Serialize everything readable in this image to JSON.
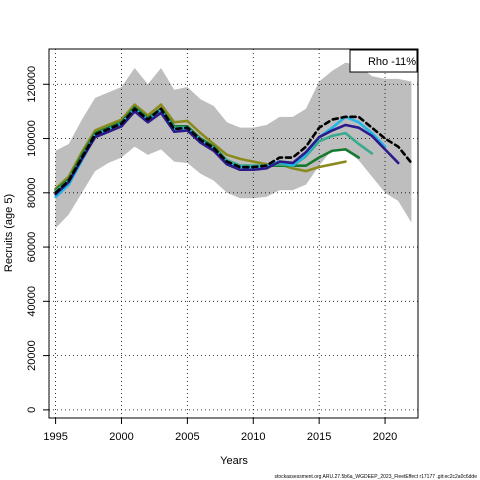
{
  "chart_data": {
    "type": "line",
    "xlabel": "Years",
    "ylabel": "Recruits (age 5)",
    "xlim": [
      1994.5,
      2022.5
    ],
    "ylim": [
      -3000,
      133000
    ],
    "x_ticks": [
      1995,
      2000,
      2005,
      2010,
      2015,
      2020
    ],
    "y_ticks": [
      0,
      20000,
      40000,
      60000,
      80000,
      100000,
      120000
    ],
    "grid": true,
    "legend": {
      "text": "Rho -11%",
      "position": "top-right"
    },
    "caption": "stockassessment.org ARU.27.5b6a_WGDEEP_2023_FleetEffect r17177 .git:ec2c2a0c6dde",
    "confidence_band": {
      "x": [
        1995,
        1996,
        1997,
        1998,
        1999,
        2000,
        2001,
        2002,
        2003,
        2004,
        2005,
        2006,
        2007,
        2008,
        2009,
        2010,
        2011,
        2012,
        2013,
        2014,
        2015,
        2016,
        2017,
        2018,
        2019,
        2020,
        2021,
        2022
      ],
      "lower": [
        67000,
        72000,
        80000,
        88000,
        91000,
        93000,
        97000,
        94000,
        96000,
        91500,
        91000,
        87000,
        84500,
        80000,
        78000,
        78000,
        78500,
        81000,
        81000,
        83000,
        90000,
        96000,
        96000,
        92000,
        86000,
        80000,
        77000,
        69000
      ],
      "upper": [
        95500,
        98000,
        107000,
        115000,
        117000,
        119000,
        126000,
        120000,
        126000,
        118000,
        119000,
        114500,
        112000,
        106000,
        104000,
        104000,
        105000,
        108000,
        108000,
        111000,
        121000,
        125000,
        128000,
        127000,
        123000,
        122000,
        122000,
        121000
      ],
      "color": "#bebebe"
    },
    "series": [
      {
        "color": "#000000",
        "dashed": true,
        "x": [
          1995,
          1996,
          1997,
          1998,
          1999,
          2000,
          2001,
          2002,
          2003,
          2004,
          2005,
          2006,
          2007,
          2008,
          2009,
          2010,
          2011,
          2012,
          2013,
          2014,
          2015,
          2016,
          2017,
          2018,
          2019,
          2020,
          2021,
          2022
        ],
        "values": [
          80000,
          84500,
          93000,
          101500,
          103500,
          105500,
          111000,
          107000,
          111000,
          103500,
          104000,
          99500,
          96500,
          91500,
          89500,
          89500,
          90000,
          93000,
          93000,
          97000,
          104000,
          107000,
          108000,
          108000,
          104000,
          100000,
          97000,
          91000
        ]
      },
      {
        "color": "#2a1a8a",
        "x": [
          1995,
          1996,
          1997,
          1998,
          1999,
          2000,
          2001,
          2002,
          2003,
          2004,
          2005,
          2006,
          2007,
          2008,
          2009,
          2010,
          2011,
          2012,
          2013,
          2014,
          2015,
          2016,
          2017,
          2018,
          2019,
          2020,
          2021
        ],
        "values": [
          79500,
          84000,
          92500,
          100500,
          102500,
          104500,
          110000,
          106000,
          109500,
          102500,
          103000,
          98500,
          95500,
          90500,
          88500,
          88500,
          89000,
          91500,
          91000,
          95000,
          100500,
          103000,
          105000,
          104000,
          101000,
          96000,
          91000
        ]
      },
      {
        "color": "#23b6e6",
        "x": [
          1995,
          1996,
          1997,
          1998,
          1999,
          2000,
          2001,
          2002,
          2003,
          2004,
          2005,
          2006,
          2007,
          2008,
          2009,
          2010,
          2011,
          2012,
          2013,
          2014,
          2015,
          2016,
          2017,
          2018,
          2019,
          2020
        ],
        "values": [
          78500,
          83000,
          92000,
          101000,
          103500,
          105500,
          111000,
          107000,
          110500,
          103500,
          104000,
          99500,
          96000,
          91000,
          89500,
          89500,
          90000,
          91500,
          90000,
          94000,
          100500,
          104000,
          108000,
          106000,
          102000,
          97000
        ]
      },
      {
        "color": "#3aaa8e",
        "x": [
          1995,
          1996,
          1997,
          1998,
          1999,
          2000,
          2001,
          2002,
          2003,
          2004,
          2005,
          2006,
          2007,
          2008,
          2009,
          2010,
          2011,
          2012,
          2013,
          2014,
          2015,
          2016,
          2017,
          2018,
          2019
        ],
        "values": [
          80500,
          84500,
          93000,
          101500,
          103500,
          105500,
          111000,
          107000,
          110500,
          104000,
          104000,
          99500,
          96500,
          92000,
          90000,
          90000,
          90000,
          90500,
          90000,
          93500,
          99000,
          101000,
          102000,
          98000,
          94500
        ]
      },
      {
        "color": "#157a2e",
        "x": [
          1995,
          1996,
          1997,
          1998,
          1999,
          2000,
          2001,
          2002,
          2003,
          2004,
          2005,
          2006,
          2007,
          2008,
          2009,
          2010,
          2011,
          2012,
          2013,
          2014,
          2015,
          2016,
          2017,
          2018
        ],
        "values": [
          81000,
          85000,
          94000,
          102000,
          104000,
          106000,
          111500,
          107500,
          111000,
          104500,
          104500,
          100000,
          97000,
          92000,
          90000,
          90000,
          90000,
          90000,
          90000,
          90000,
          93000,
          95500,
          96000,
          93000
        ]
      },
      {
        "color": "#8b8a1c",
        "x": [
          1995,
          1996,
          1997,
          1998,
          1999,
          2000,
          2001,
          2002,
          2003,
          2004,
          2005,
          2006,
          2007,
          2008,
          2009,
          2010,
          2011,
          2012,
          2013,
          2014,
          2015,
          2016,
          2017
        ],
        "values": [
          81500,
          86000,
          95000,
          103000,
          105000,
          107000,
          112500,
          108500,
          112500,
          106000,
          106500,
          102000,
          98000,
          94000,
          92500,
          91500,
          90500,
          90500,
          89000,
          88000,
          89500,
          90500,
          91500
        ]
      }
    ]
  }
}
